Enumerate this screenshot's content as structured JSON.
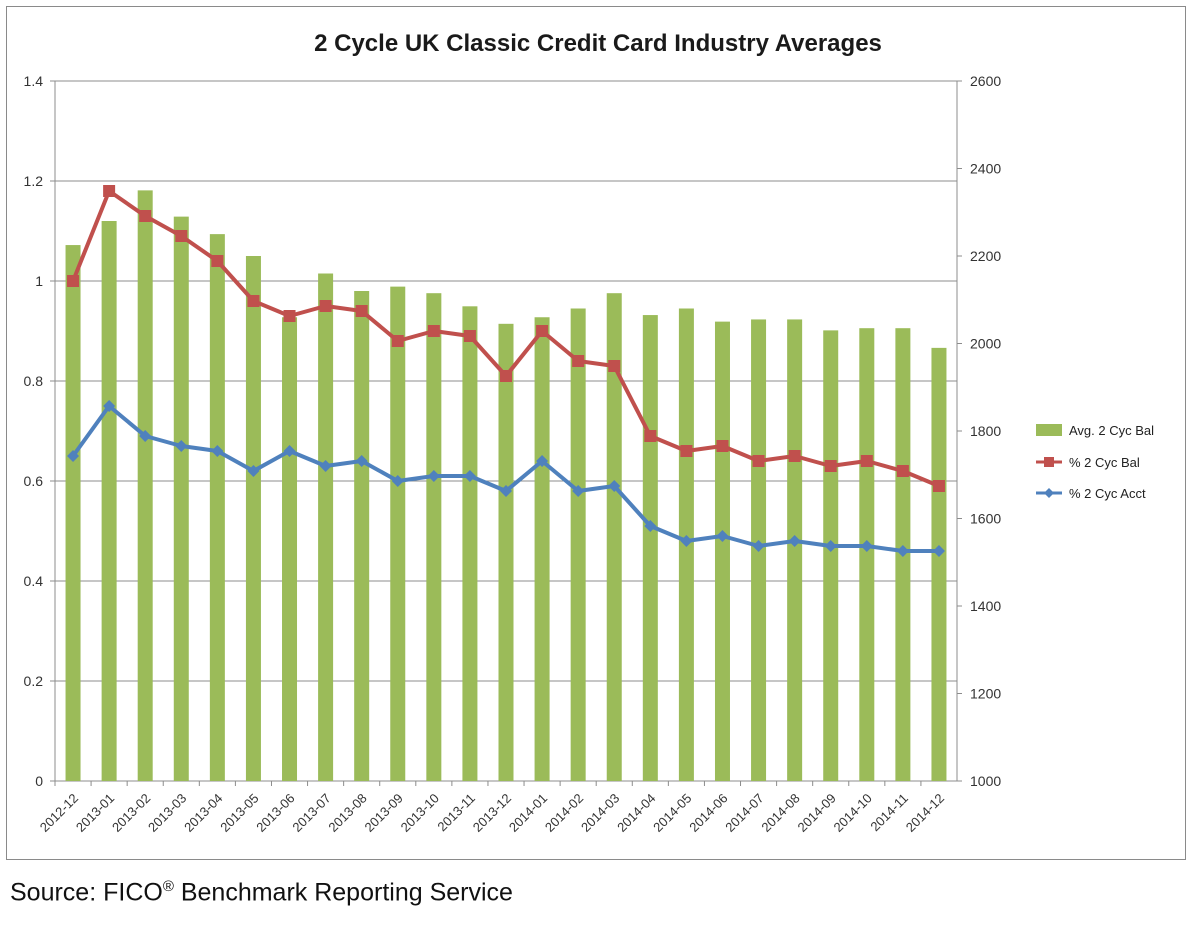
{
  "source": {
    "prefix": "Source: FICO",
    "registered_mark": "®",
    "suffix": " Benchmark Reporting Service"
  },
  "chart_data": {
    "type": "bar",
    "title": "2 Cycle UK Classic Credit Card Industry Averages",
    "categories": [
      "2012-12",
      "2013-01",
      "2013-02",
      "2013-03",
      "2013-04",
      "2013-05",
      "2013-06",
      "2013-07",
      "2013-08",
      "2013-09",
      "2013-10",
      "2013-11",
      "2013-12",
      "2014-01",
      "2014-02",
      "2014-03",
      "2014-04",
      "2014-05",
      "2014-06",
      "2014-07",
      "2014-08",
      "2014-09",
      "2014-10",
      "2014-11",
      "2014-12"
    ],
    "y_left": {
      "min": 0,
      "max": 1.4,
      "ticks": [
        "0",
        "0.2",
        "0.4",
        "0.6",
        "0.8",
        "1",
        "1.2",
        "1.4"
      ]
    },
    "y_right": {
      "min": 1000,
      "max": 2600,
      "ticks": [
        "1000",
        "1200",
        "1400",
        "1600",
        "1800",
        "2000",
        "2200",
        "2400",
        "2600"
      ]
    },
    "grid": true,
    "legend_position": "right",
    "series": [
      {
        "name": "Avg. 2 Cyc Bal",
        "kind": "bar",
        "axis": "right",
        "color": "#9bbb59",
        "values": [
          2225,
          2280,
          2350,
          2290,
          2250,
          2200,
          2060,
          2160,
          2120,
          2130,
          2115,
          2085,
          2045,
          2060,
          2080,
          2115,
          2065,
          2080,
          2050,
          2055,
          2055,
          2030,
          2035,
          2035,
          1990
        ]
      },
      {
        "name": "% 2 Cyc Bal",
        "kind": "line",
        "axis": "left",
        "color": "#c0504d",
        "marker": "square",
        "values": [
          1.0,
          1.18,
          1.13,
          1.09,
          1.04,
          0.96,
          0.93,
          0.95,
          0.94,
          0.88,
          0.9,
          0.89,
          0.81,
          0.9,
          0.84,
          0.83,
          0.69,
          0.66,
          0.67,
          0.64,
          0.65,
          0.63,
          0.64,
          0.62,
          0.59
        ]
      },
      {
        "name": "% 2 Cyc Acct",
        "kind": "line",
        "axis": "left",
        "color": "#4f81bd",
        "marker": "diamond",
        "values": [
          0.65,
          0.75,
          0.69,
          0.67,
          0.66,
          0.62,
          0.66,
          0.63,
          0.64,
          0.6,
          0.61,
          0.61,
          0.58,
          0.64,
          0.58,
          0.59,
          0.51,
          0.48,
          0.49,
          0.47,
          0.48,
          0.47,
          0.47,
          0.46,
          0.46
        ]
      }
    ]
  }
}
